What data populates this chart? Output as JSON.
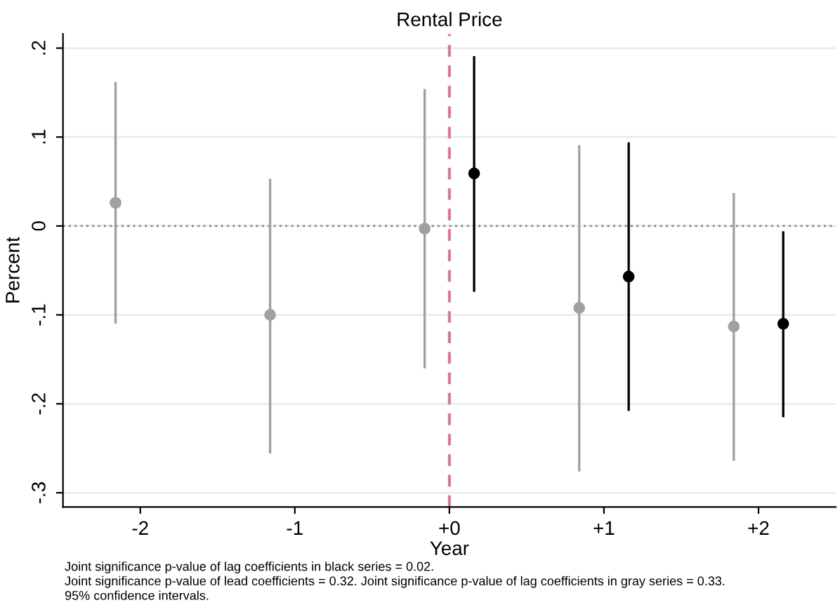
{
  "chart_data": {
    "type": "scatter",
    "title": "Rental Price",
    "xlabel": "Year",
    "ylabel": "Percent",
    "series": [
      {
        "color": "#a0a0a0",
        "x": [
          -2.16,
          -1.16,
          -0.16,
          0.84,
          1.84
        ],
        "values": [
          0.026,
          -0.1,
          -0.003,
          -0.092,
          -0.113
        ],
        "errors": [
          [
            -0.11,
            0.162
          ],
          [
            -0.256,
            0.053
          ],
          [
            -0.16,
            0.154
          ],
          [
            -0.276,
            0.091
          ],
          [
            -0.264,
            0.037
          ]
        ]
      },
      {
        "color": "#000000",
        "x": [
          0.16,
          1.16,
          2.16
        ],
        "values": [
          0.059,
          -0.057,
          -0.11
        ],
        "errors": [
          [
            -0.074,
            0.191
          ],
          [
            -0.208,
            0.094
          ],
          [
            -0.215,
            -0.006
          ]
        ]
      }
    ],
    "xlim": [
      -2.5,
      2.5
    ],
    "xticks": [
      -2,
      -1,
      {
        "value": 0,
        "label": "+0"
      },
      {
        "value": 1,
        "label": "+1"
      },
      {
        "value": 2,
        "label": "+2"
      }
    ],
    "ylim": [
      -0.316,
      0.216
    ],
    "yticks": [
      {
        "value": -0.3,
        "label": "-.3"
      },
      {
        "value": -0.2,
        "label": "-.2"
      },
      {
        "value": -0.1,
        "label": "-.1"
      },
      0,
      {
        "value": 0.1,
        "label": ".1"
      },
      {
        "value": 0.2,
        "label": ".2"
      }
    ],
    "ref_lines": [
      {
        "axis": "y",
        "value": 0,
        "color": "#808080",
        "line_style": "dotted"
      },
      {
        "axis": "x",
        "value": 0,
        "color": "#d9779a",
        "line_style": "dashed"
      }
    ],
    "grid": "y",
    "marker": "circle",
    "annotations": [
      "Joint significance p-value of lag coefficients in black series = 0.02.",
      "Joint significance p-value of lead coefficients = 0.32. Joint significance p-value of lag coefficients in gray series = 0.33.",
      "95% confidence intervals."
    ]
  }
}
